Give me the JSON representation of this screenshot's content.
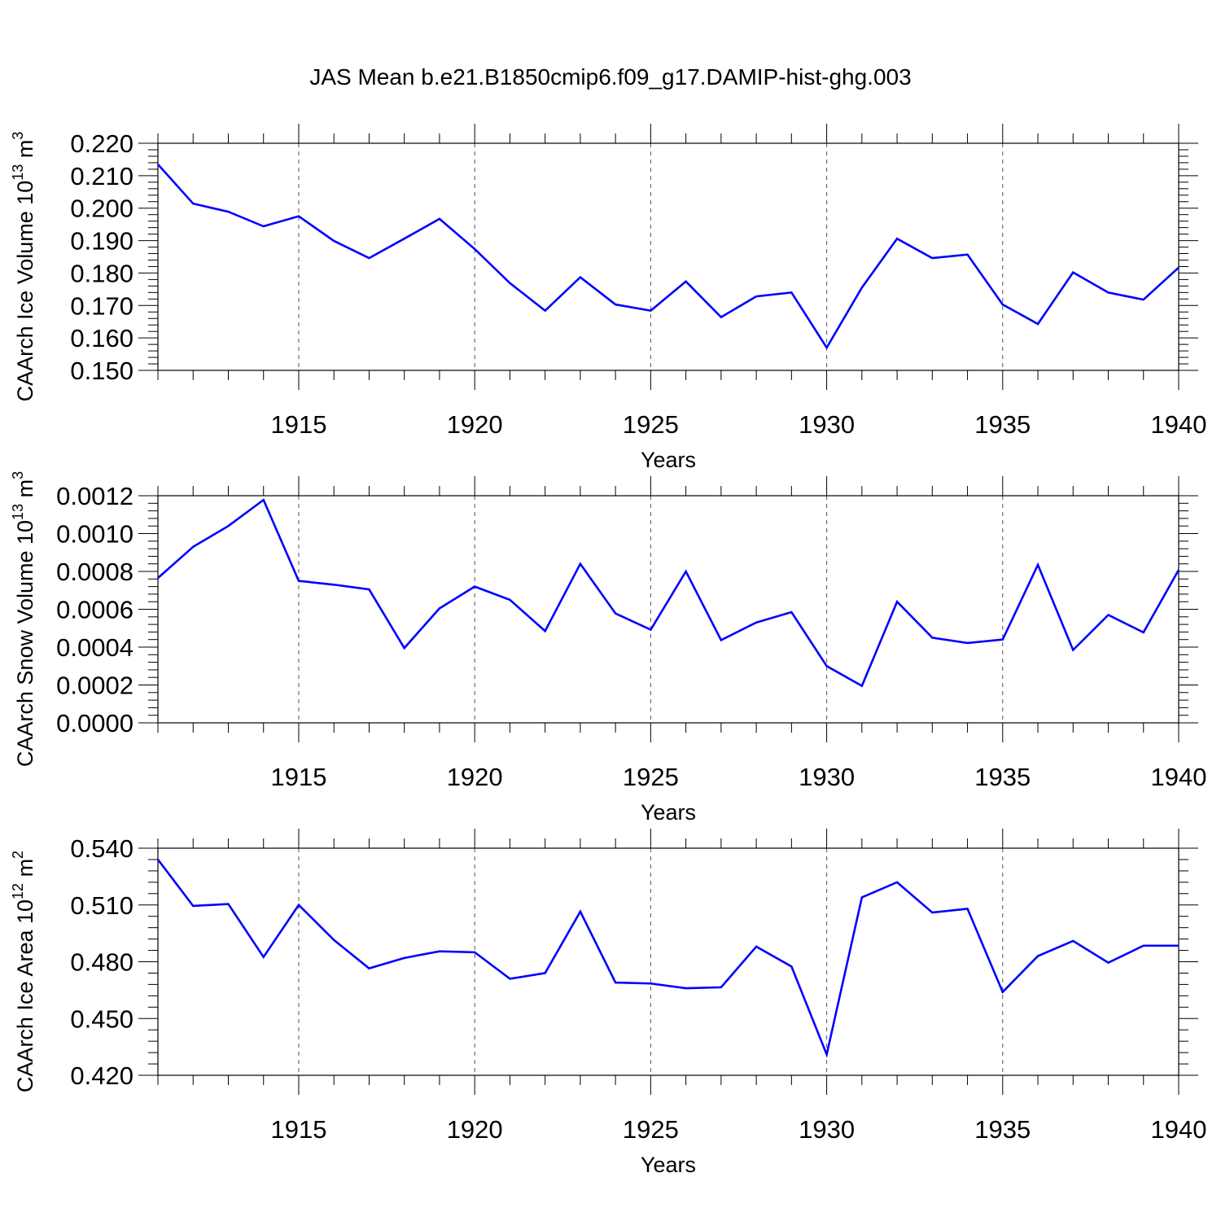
{
  "title": "JAS Mean b.e21.B1850cmip6.f09_g17.DAMIP-hist-ghg.003",
  "colors": {
    "line": "#0000ff",
    "frame": "#000000",
    "grid": "#555555"
  },
  "chart_data": [
    {
      "type": "line",
      "ylabel_main": "CAArch Ice Volume 10",
      "ylabel_exp": "13",
      "ylabel_unit": " m",
      "ylabel_unit_exp": "3",
      "xlabel": "Years",
      "xlim": [
        1911,
        1940
      ],
      "ylim": [
        0.15,
        0.22
      ],
      "xticks": [
        1915,
        1920,
        1925,
        1930,
        1935,
        1940
      ],
      "yticks": [
        0.15,
        0.16,
        0.17,
        0.18,
        0.19,
        0.2,
        0.21,
        0.22
      ],
      "ytick_labels": [
        "0.150",
        "0.160",
        "0.170",
        "0.180",
        "0.190",
        "0.200",
        "0.210",
        "0.220"
      ],
      "grid": "vertical dashed at major x ticks",
      "x": [
        1911,
        1912,
        1913,
        1914,
        1915,
        1916,
        1917,
        1918,
        1919,
        1920,
        1921,
        1922,
        1923,
        1924,
        1925,
        1926,
        1927,
        1928,
        1929,
        1930,
        1931,
        1932,
        1933,
        1934,
        1935,
        1936,
        1937,
        1938,
        1939,
        1940
      ],
      "values": [
        0.2135,
        0.2014,
        0.1989,
        0.1944,
        0.1975,
        0.1899,
        0.1846,
        0.1906,
        0.1967,
        0.1874,
        0.1769,
        0.1684,
        0.1787,
        0.1703,
        0.1684,
        0.1774,
        0.1664,
        0.1728,
        0.174,
        0.157,
        0.1755,
        0.1906,
        0.1846,
        0.1857,
        0.1703,
        0.1643,
        0.1802,
        0.174,
        0.1718,
        0.1817
      ]
    },
    {
      "type": "line",
      "ylabel_main": "CAArch Snow Volume 10",
      "ylabel_exp": "13",
      "ylabel_unit": " m",
      "ylabel_unit_exp": "3",
      "xlabel": "Years",
      "xlim": [
        1911,
        1940
      ],
      "ylim": [
        0.0,
        0.0012
      ],
      "xticks": [
        1915,
        1920,
        1925,
        1930,
        1935,
        1940
      ],
      "yticks": [
        0.0,
        0.0002,
        0.0004,
        0.0006,
        0.0008,
        0.001,
        0.0012
      ],
      "ytick_labels": [
        "0.0000",
        "0.0002",
        "0.0004",
        "0.0006",
        "0.0008",
        "0.0010",
        "0.0012"
      ],
      "grid": "vertical dashed at major x ticks",
      "x": [
        1911,
        1912,
        1913,
        1914,
        1915,
        1916,
        1917,
        1918,
        1919,
        1920,
        1921,
        1922,
        1923,
        1924,
        1925,
        1926,
        1927,
        1928,
        1929,
        1930,
        1931,
        1932,
        1933,
        1934,
        1935,
        1936,
        1937,
        1938,
        1939,
        1940
      ],
      "values": [
        0.000765,
        0.00093,
        0.00104,
        0.001178,
        0.00075,
        0.00073,
        0.000705,
        0.000395,
        0.000605,
        0.00072,
        0.00065,
        0.000485,
        0.00084,
        0.000578,
        0.000492,
        0.0008,
        0.000437,
        0.00053,
        0.000585,
        0.0003,
        0.000195,
        0.00064,
        0.00045,
        0.000422,
        0.00044,
        0.000835,
        0.000385,
        0.00057,
        0.000478,
        0.000808
      ]
    },
    {
      "type": "line",
      "ylabel_main": "CAArch Ice Area 10",
      "ylabel_exp": "12",
      "ylabel_unit": " m",
      "ylabel_unit_exp": "2",
      "xlabel": "Years",
      "xlim": [
        1911,
        1940
      ],
      "ylim": [
        0.42,
        0.54
      ],
      "xticks": [
        1915,
        1920,
        1925,
        1930,
        1935,
        1940
      ],
      "yticks": [
        0.42,
        0.45,
        0.48,
        0.51,
        0.54
      ],
      "ytick_labels": [
        "0.420",
        "0.450",
        "0.480",
        "0.510",
        "0.540"
      ],
      "grid": "vertical dashed at major x ticks",
      "x": [
        1911,
        1912,
        1913,
        1914,
        1915,
        1916,
        1917,
        1918,
        1919,
        1920,
        1921,
        1922,
        1923,
        1924,
        1925,
        1926,
        1927,
        1928,
        1929,
        1930,
        1931,
        1932,
        1933,
        1934,
        1935,
        1936,
        1937,
        1938,
        1939,
        1940
      ],
      "values": [
        0.534,
        0.5095,
        0.5105,
        0.4825,
        0.51,
        0.4915,
        0.4765,
        0.482,
        0.4855,
        0.485,
        0.471,
        0.474,
        0.5065,
        0.469,
        0.4685,
        0.466,
        0.4665,
        0.488,
        0.4775,
        0.431,
        0.514,
        0.522,
        0.506,
        0.508,
        0.464,
        0.483,
        0.491,
        0.4795,
        0.4885,
        0.4885
      ]
    }
  ]
}
